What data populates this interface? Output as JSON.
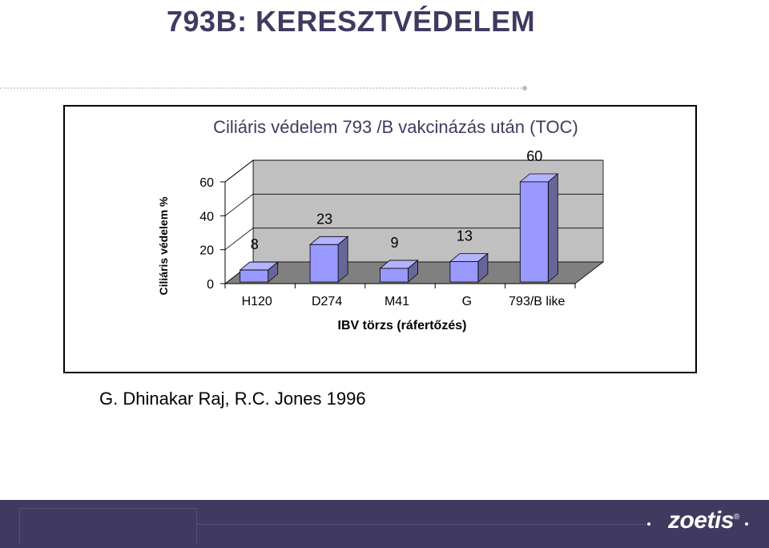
{
  "slide": {
    "title": "793B: KERESZTVÉDELEM",
    "citation": "G. Dhinakar Raj, R.C. Jones 1996"
  },
  "footer": {
    "logo_text": "zoetis",
    "logo_mark": "®"
  },
  "colors": {
    "title": "#403a60",
    "footer": "#403a60",
    "bar_front": "#9999ff",
    "bar_top": "#b3b3ff",
    "bar_side": "#666699",
    "back_wall": "#c0c0c0",
    "floor": "#808080"
  },
  "chart_data": {
    "type": "bar",
    "title": "Ciliáris  védelem 793 /B vakcinázás után (TOC)",
    "xlabel": "IBV törzs (ráfertőzés)",
    "ylabel": "Ciliáris védelem  %",
    "categories": [
      "H120",
      "D274",
      "M41",
      "G",
      "793/B like"
    ],
    "values": [
      8,
      23,
      9,
      13,
      60
    ],
    "data_labels": [
      "8",
      "23",
      "9",
      "13",
      "60"
    ],
    "y_ticks": [
      0,
      20,
      40,
      60
    ],
    "y_tick_labels": [
      "0",
      "20",
      "40",
      "60"
    ],
    "ylim": [
      0,
      60
    ],
    "grid": true,
    "legend": "none",
    "style": "3d"
  }
}
